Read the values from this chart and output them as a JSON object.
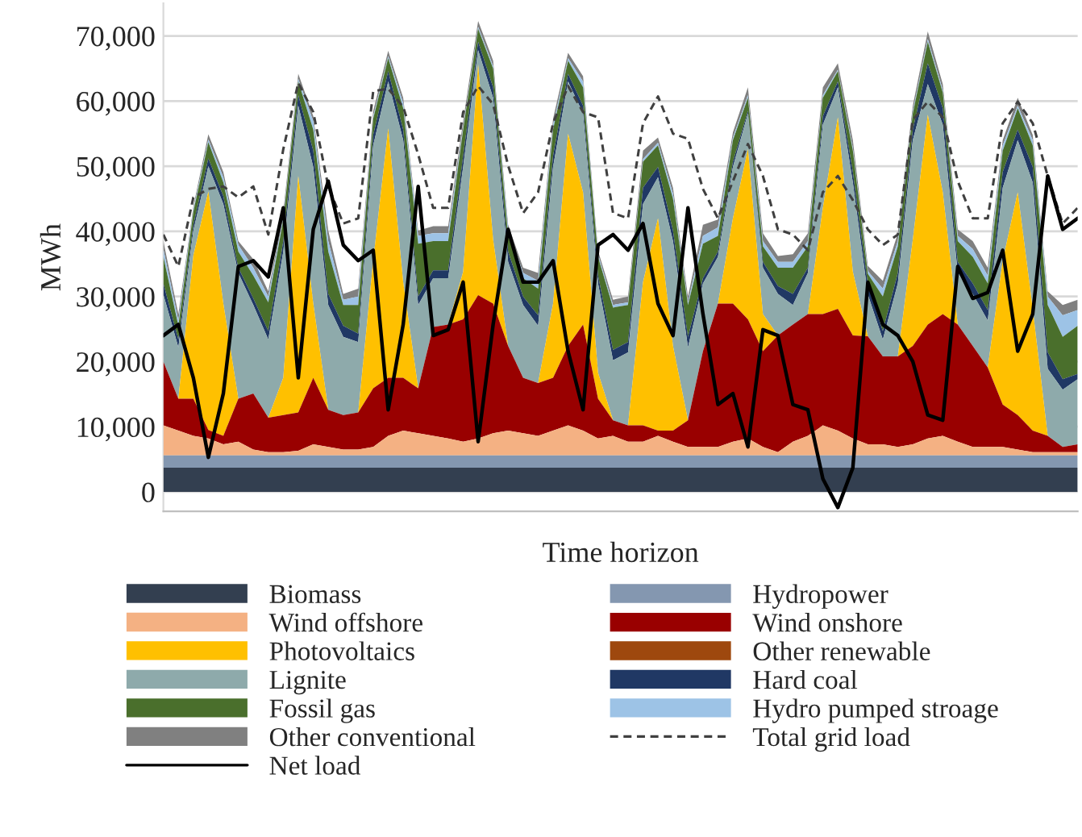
{
  "chart_data": {
    "type": "area",
    "stacked": true,
    "xlabel": "Time horizon",
    "ylabel": "MWh",
    "categories": [
      null,
      null,
      null,
      null,
      null,
      null,
      null,
      null,
      null,
      null,
      null,
      null,
      null,
      null,
      null,
      null,
      null,
      null,
      null,
      null,
      null,
      null,
      null,
      null,
      null,
      null,
      null,
      null,
      null,
      null,
      null,
      null,
      null,
      null,
      null,
      null,
      null,
      null,
      null,
      null,
      null,
      null,
      null,
      null,
      null,
      null,
      null,
      null,
      null,
      null,
      null,
      null,
      null,
      null,
      null,
      null,
      null,
      null,
      null,
      null,
      null,
      null
    ],
    "ylim": [
      -3000,
      75000
    ],
    "yticks": [
      0,
      {
        "value": 10000,
        "label": "10,000"
      },
      {
        "value": 20000,
        "label": "20,000"
      },
      {
        "value": 30000,
        "label": "30,000"
      },
      {
        "value": 40000,
        "label": "40,000"
      },
      {
        "value": 50000,
        "label": "50,000"
      },
      {
        "value": 60000,
        "label": "60,000"
      },
      {
        "value": 70000,
        "label": "70,000"
      }
    ],
    "grid": "y",
    "legend": "bottom",
    "series": [
      {
        "name": "Biomass",
        "color": "#333f50",
        "values": [
          3700,
          3700,
          3700,
          3700,
          3700,
          3700,
          3700,
          3700,
          3700,
          3700,
          3700,
          3700,
          3700,
          3700,
          3700,
          3700,
          3700,
          3700,
          3700,
          3700,
          3700,
          3700,
          3700,
          3700,
          3700,
          3700,
          3700,
          3700,
          3700,
          3700,
          3700,
          3700,
          3700,
          3700,
          3700,
          3700,
          3700,
          3700,
          3700,
          3700,
          3700,
          3700,
          3700,
          3700,
          3700,
          3700,
          3700,
          3700,
          3700,
          3700,
          3700,
          3700,
          3700,
          3700,
          3700,
          3700,
          3700,
          3700,
          3700,
          3700,
          3700,
          3700
        ]
      },
      {
        "name": "Hydropower",
        "color": "#8497b0",
        "values": [
          1900,
          1900,
          1900,
          1900,
          1900,
          1900,
          1900,
          1900,
          1900,
          1900,
          1900,
          1900,
          1900,
          1900,
          1900,
          1900,
          1900,
          1900,
          1900,
          1900,
          1900,
          1900,
          1900,
          1900,
          1900,
          1900,
          1900,
          1900,
          1900,
          1900,
          1900,
          1900,
          1900,
          1900,
          1900,
          1900,
          1900,
          1900,
          1900,
          1900,
          1900,
          1900,
          1900,
          1900,
          1900,
          1900,
          1900,
          1900,
          1900,
          1900,
          1900,
          1900,
          1900,
          1900,
          1900,
          1900,
          1900,
          1900,
          1900,
          1900,
          1900,
          1900
        ]
      },
      {
        "name": "Wind offshore",
        "color": "#f4b183",
        "values": [
          4600,
          3800,
          3000,
          2600,
          1700,
          2100,
          900,
          500,
          500,
          700,
          1700,
          1300,
          900,
          900,
          1300,
          3000,
          3800,
          3400,
          3000,
          2600,
          2100,
          2600,
          3400,
          3800,
          3400,
          3000,
          3800,
          4600,
          3800,
          2600,
          3000,
          2100,
          2100,
          3000,
          2100,
          1300,
          1300,
          1300,
          2100,
          2600,
          1300,
          500,
          2100,
          3000,
          4600,
          3800,
          2600,
          1700,
          1700,
          1300,
          1700,
          2600,
          3000,
          2100,
          1300,
          1300,
          1300,
          900,
          500,
          500,
          500,
          500
        ]
      },
      {
        "name": "Wind onshore",
        "color": "#990000",
        "values": [
          9800,
          4900,
          5700,
          1300,
          1300,
          6600,
          8600,
          5300,
          5700,
          5900,
          10200,
          5700,
          5300,
          5700,
          9000,
          8900,
          8100,
          6900,
          16700,
          17500,
          18800,
          22000,
          19900,
          13000,
          8500,
          8100,
          8100,
          12200,
          16300,
          6100,
          2400,
          2500,
          2500,
          800,
          1700,
          4100,
          14700,
          22000,
          21200,
          18300,
          14700,
          17900,
          18000,
          18700,
          17100,
          18700,
          15800,
          16600,
          13500,
          13900,
          15100,
          17500,
          18700,
          18000,
          15500,
          12200,
          6500,
          5300,
          3300,
          2500,
          800,
          1200
        ]
      },
      {
        "name": "Photovoltaics",
        "color": "#ffc000",
        "values": [
          0,
          0,
          22000,
          36600,
          20300,
          0,
          0,
          0,
          5700,
          36300,
          11400,
          0,
          0,
          0,
          19600,
          38300,
          14700,
          0,
          0,
          0,
          7300,
          35400,
          9800,
          0,
          0,
          0,
          11400,
          32600,
          20300,
          4000,
          0,
          0,
          22000,
          32600,
          13000,
          0,
          0,
          0,
          13100,
          26100,
          5700,
          0,
          0,
          0,
          16300,
          29400,
          9800,
          0,
          0,
          0,
          16300,
          32200,
          18700,
          0,
          0,
          0,
          22100,
          34200,
          18700,
          0,
          0,
          0
        ]
      },
      {
        "name": "Other renewable",
        "color": "#9e480e",
        "values": [
          null,
          null,
          null,
          null,
          null,
          null,
          null,
          null,
          null,
          null,
          null,
          null,
          null,
          null,
          null,
          null,
          null,
          null,
          null,
          null,
          null,
          null,
          null,
          null,
          null,
          null,
          null,
          null,
          null,
          null,
          null,
          null,
          null,
          null,
          null,
          null,
          null,
          null,
          null,
          null,
          null,
          null,
          null,
          null,
          null,
          null,
          null,
          null,
          null,
          null,
          null,
          null,
          null,
          null,
          null,
          null,
          null,
          null,
          null,
          null,
          null,
          null
        ]
      },
      {
        "name": "Lignite",
        "color": "#8eaaab",
        "values": [
          10300,
          7900,
          3800,
          3900,
          15300,
          19300,
          13600,
          12000,
          19400,
          10800,
          21000,
          16100,
          12000,
          10800,
          17700,
          7200,
          21800,
          12800,
          7500,
          7100,
          16100,
          2200,
          21800,
          12900,
          11200,
          8800,
          21000,
          8000,
          12100,
          13700,
          9200,
          11200,
          12000,
          6300,
          16100,
          11200,
          10400,
          7200,
          7900,
          5500,
          7100,
          6400,
          3000,
          6300,
          12800,
          4600,
          13700,
          6400,
          2600,
          11200,
          15300,
          4700,
          10400,
          7900,
          8000,
          7200,
          11200,
          8000,
          19400,
          10300,
          8800,
          10000
        ]
      },
      {
        "name": "Hard coal",
        "color": "#203864",
        "values": [
          1700,
          1200,
          900,
          1200,
          1200,
          800,
          1000,
          1300,
          1600,
          1600,
          2500,
          1700,
          1700,
          1300,
          1600,
          1600,
          1600,
          1300,
          1200,
          1200,
          1700,
          1300,
          1600,
          1600,
          1300,
          1600,
          1700,
          1200,
          1200,
          1200,
          1600,
          1600,
          2500,
          1600,
          1600,
          1600,
          800,
          800,
          800,
          400,
          900,
          1200,
          1700,
          800,
          1300,
          900,
          1600,
          1600,
          1300,
          1600,
          1600,
          3200,
          2500,
          1700,
          1600,
          1600,
          2400,
          1600,
          2400,
          2500,
          1600,
          800
        ]
      },
      {
        "name": "Fossil gas",
        "color": "#4a6f2c",
        "values": [
          4100,
          2100,
          2000,
          2500,
          2100,
          2500,
          3500,
          4400,
          3300,
          2100,
          3200,
          6500,
          3200,
          4400,
          2500,
          2000,
          3300,
          8100,
          4500,
          4500,
          4000,
          2000,
          2900,
          2400,
          2800,
          4100,
          4000,
          2000,
          2800,
          2900,
          6500,
          5700,
          4000,
          3300,
          4900,
          4900,
          5300,
          2400,
          3300,
          2000,
          2400,
          2800,
          4000,
          3300,
          2800,
          1600,
          3300,
          1600,
          5300,
          4100,
          2500,
          3300,
          2400,
          3200,
          4100,
          4100,
          3300,
          3300,
          3300,
          7300,
          6500,
          7400
        ]
      },
      {
        "name": "Hydro pumped stroage",
        "color": "#9dc3e6",
        "values": [
          1200,
          800,
          400,
          400,
          800,
          1000,
          1200,
          900,
          400,
          400,
          1300,
          1600,
          800,
          1300,
          400,
          300,
          800,
          1200,
          1200,
          1200,
          400,
          300,
          400,
          1000,
          800,
          1200,
          800,
          400,
          900,
          400,
          400,
          400,
          400,
          400,
          800,
          400,
          1200,
          1300,
          400,
          400,
          800,
          900,
          900,
          800,
          400,
          200,
          400,
          400,
          1200,
          800,
          400,
          400,
          400,
          800,
          1200,
          1200,
          800,
          400,
          800,
          1300,
          3300,
          2400
        ]
      },
      {
        "name": "Other conventional",
        "color": "#808080",
        "values": [
          1200,
          1000,
          400,
          800,
          800,
          600,
          1300,
          800,
          800,
          800,
          800,
          1600,
          900,
          1200,
          800,
          800,
          800,
          800,
          1100,
          1100,
          900,
          900,
          800,
          700,
          800,
          1200,
          900,
          800,
          800,
          500,
          800,
          900,
          1300,
          800,
          900,
          900,
          1700,
          1200,
          800,
          1200,
          1200,
          900,
          1200,
          1200,
          1200,
          1000,
          1200,
          800,
          1200,
          1200,
          800,
          1200,
          900,
          1000,
          1200,
          1200,
          800,
          1200,
          800,
          800,
          1600,
          1600
        ]
      },
      {
        "name": "Total grid load",
        "type": "line",
        "color": "#404040",
        "line_style": "dashed",
        "values": [
          39500,
          34600,
          45200,
          46500,
          46900,
          45200,
          46900,
          39500,
          52600,
          62800,
          58300,
          46900,
          41200,
          42000,
          61500,
          61900,
          59100,
          51800,
          43600,
          43600,
          58300,
          62300,
          59500,
          50100,
          42800,
          46000,
          56600,
          62300,
          58300,
          57500,
          42800,
          42000,
          56600,
          60700,
          55000,
          54200,
          46500,
          42000,
          47700,
          53400,
          48500,
          40300,
          39500,
          37100,
          46000,
          48500,
          44800,
          40300,
          37900,
          39500,
          57100,
          59900,
          57500,
          47700,
          42000,
          42000,
          56600,
          59900,
          56600,
          48500,
          41200,
          43600
        ]
      },
      {
        "name": "Net load",
        "type": "line",
        "color": "#000000",
        "line_style": "solid",
        "values": [
          24000,
          25700,
          17500,
          5300,
          15100,
          34600,
          35500,
          33000,
          43600,
          17500,
          40300,
          47700,
          37900,
          35500,
          37100,
          12600,
          25700,
          46900,
          24000,
          24900,
          32200,
          7700,
          25700,
          40300,
          32200,
          32200,
          35500,
          21600,
          12600,
          37900,
          39500,
          37100,
          41200,
          28900,
          24000,
          43600,
          27300,
          13400,
          15100,
          6900,
          24900,
          24000,
          13400,
          12600,
          2000,
          -2400,
          3700,
          32200,
          25700,
          24000,
          20000,
          11800,
          11000,
          34600,
          29700,
          30600,
          37100,
          21600,
          27300,
          48500,
          40300,
          42000
        ]
      }
    ]
  }
}
